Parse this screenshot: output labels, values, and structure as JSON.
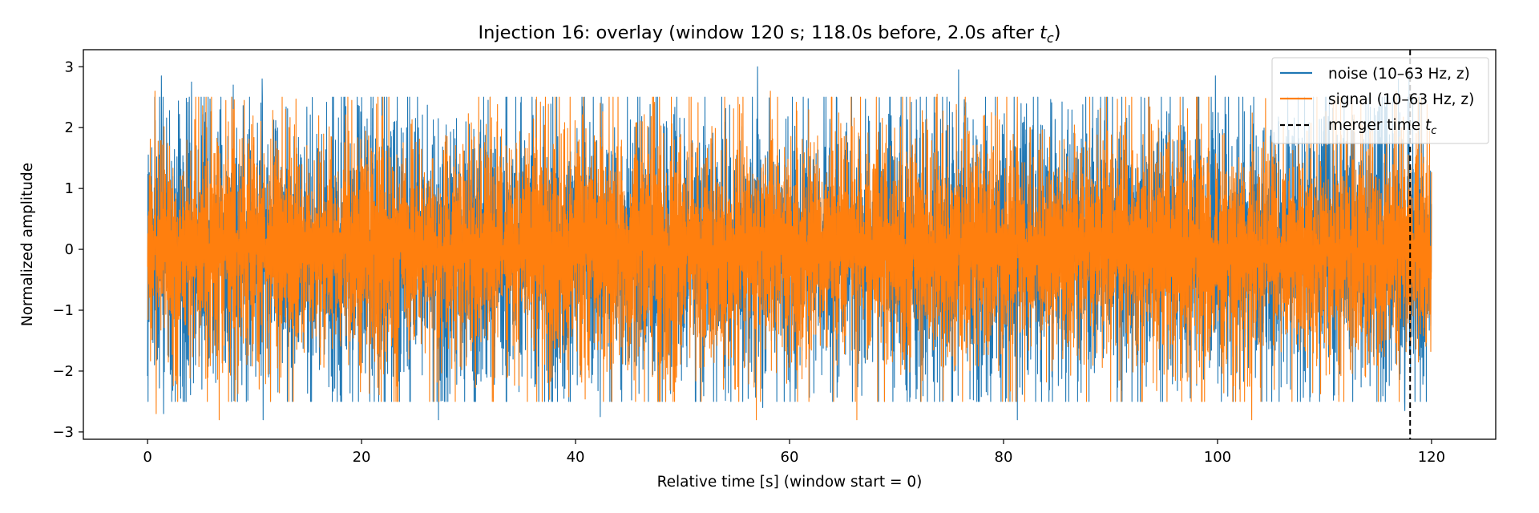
{
  "chart_data": {
    "type": "line",
    "title": "Injection 16: overlay (window 120 s; 118.0s before, 2.0s after t_c)",
    "title_parts": {
      "main": "Injection 16: overlay (window 120 s; 118.0s before, 2.0s after ",
      "math": "t",
      "sub": "c",
      "close": ")"
    },
    "xlabel": "Relative time [s] (window start = 0)",
    "ylabel": "Normalized amplitude",
    "xlim": [
      -6,
      126
    ],
    "ylim": [
      -3.12,
      3.28
    ],
    "xticks": [
      0,
      20,
      40,
      60,
      80,
      100,
      120
    ],
    "xtick_labels": [
      "0",
      "20",
      "40",
      "60",
      "80",
      "100",
      "120"
    ],
    "yticks": [
      -3,
      -2,
      -1,
      0,
      1,
      2,
      3
    ],
    "ytick_labels": [
      "−3",
      "−2",
      "−1",
      "0",
      "1",
      "2",
      "3"
    ],
    "grid": false,
    "legend_position": "top-right",
    "series": [
      {
        "name": "noise (10–63 Hz, z)",
        "color": "#1f77b4",
        "x_range": [
          0,
          120
        ],
        "peaks_positive": [
          [
            1.3,
            2.85
          ],
          [
            4.1,
            2.75
          ],
          [
            8.0,
            2.7
          ],
          [
            10.7,
            2.8
          ],
          [
            27.2,
            2.85
          ],
          [
            57.0,
            3.0
          ],
          [
            75.8,
            2.95
          ],
          [
            99.8,
            2.85
          ],
          [
            116.9,
            2.8
          ],
          [
            117.9,
            2.9
          ]
        ],
        "peaks_negative": [
          [
            1.5,
            -2.7
          ],
          [
            10.8,
            -2.8
          ],
          [
            27.2,
            -2.8
          ],
          [
            42.3,
            -2.75
          ],
          [
            57.5,
            -2.6
          ],
          [
            81.3,
            -2.8
          ],
          [
            117.5,
            -2.65
          ]
        ]
      },
      {
        "name": "signal (10–63 Hz, z)",
        "color": "#ff7f0e",
        "x_range": [
          0,
          120
        ],
        "peaks_positive": [
          [
            0.7,
            2.6
          ],
          [
            8.0,
            2.3
          ],
          [
            12.9,
            2.3
          ],
          [
            42.3,
            2.4
          ],
          [
            58.2,
            2.6
          ],
          [
            73.8,
            2.55
          ],
          [
            81.3,
            2.5
          ],
          [
            116.7,
            2.6
          ]
        ],
        "peaks_negative": [
          [
            0.8,
            -2.7
          ],
          [
            6.7,
            -2.8
          ],
          [
            56.9,
            -2.8
          ],
          [
            66.3,
            -2.8
          ],
          [
            103.2,
            -2.8
          ]
        ]
      }
    ],
    "vlines": [
      {
        "name": "merger time t_c",
        "x": 118.0,
        "color": "#000000",
        "style": "dashed"
      }
    ],
    "legend": [
      {
        "label": "noise (10–63 Hz, z)",
        "color": "#1f77b4",
        "style": "solid"
      },
      {
        "label": "signal (10–63 Hz, z)",
        "color": "#ff7f0e",
        "style": "solid"
      },
      {
        "label_main": "merger time ",
        "label_math": "t",
        "label_sub": "c",
        "color": "#000000",
        "style": "dashed"
      }
    ]
  }
}
